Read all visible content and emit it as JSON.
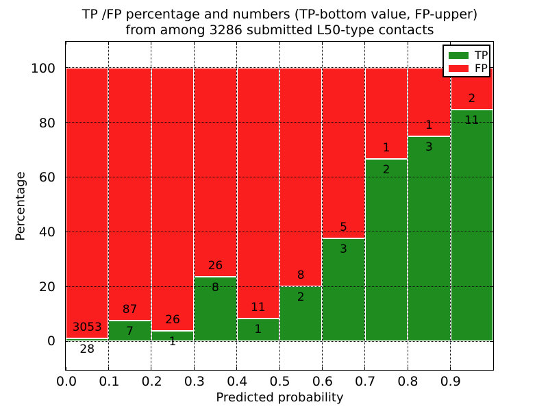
{
  "title": {
    "line1": "TP /FP percentage and numbers (TP-bottom value, FP-upper)",
    "line2": "from among 3286 submitted L50-type contacts"
  },
  "axes": {
    "xlabel": "Predicted probability",
    "ylabel": "Percentage",
    "x_tick_labels": [
      "0.0",
      "0.1",
      "0.2",
      "0.3",
      "0.4",
      "0.5",
      "0.6",
      "0.7",
      "0.8",
      "0.9"
    ],
    "y_tick_labels": [
      "0",
      "20",
      "40",
      "60",
      "80",
      "100"
    ],
    "y_tick_values": [
      0,
      20,
      40,
      60,
      80,
      100
    ],
    "xlim": [
      0.0,
      1.0
    ],
    "ylim_display": [
      -10.5,
      109.5
    ]
  },
  "legend": {
    "items": [
      {
        "label": "TP",
        "color": "#1e8c1e"
      },
      {
        "label": "FP",
        "color": "#fa1e1e"
      }
    ]
  },
  "colors": {
    "tp": "#1e8c1e",
    "fp": "#fa1e1e",
    "bar_edge": "#ffffff",
    "grid": "#000000",
    "background": "#ffffff"
  },
  "chart_data": {
    "type": "bar",
    "stacked": true,
    "normalized": "each bar totals 100%",
    "title": "TP /FP percentage and numbers (TP-bottom value, FP-upper) from among 3286 submitted L50-type contacts",
    "xlabel": "Predicted probability",
    "ylabel": "Percentage",
    "total_contacts": 3286,
    "categories": [
      "0.0-0.1",
      "0.1-0.2",
      "0.2-0.3",
      "0.3-0.4",
      "0.4-0.5",
      "0.5-0.6",
      "0.6-0.7",
      "0.7-0.8",
      "0.8-0.9",
      "0.9-1.0"
    ],
    "series": [
      {
        "name": "TP",
        "position": "bottom",
        "color": "#1e8c1e",
        "counts": [
          28,
          7,
          1,
          8,
          1,
          2,
          3,
          2,
          3,
          11
        ]
      },
      {
        "name": "FP",
        "position": "top",
        "color": "#fa1e1e",
        "counts": [
          3053,
          87,
          26,
          26,
          11,
          8,
          5,
          1,
          1,
          2
        ]
      }
    ],
    "tp_percent_of_bin": [
      0.91,
      7.45,
      3.7,
      23.53,
      8.33,
      20.0,
      37.5,
      66.67,
      75.0,
      84.62
    ],
    "xlim": [
      0.0,
      1.0
    ],
    "ylim": [
      -10.5,
      109.5
    ],
    "grid": "dotted black at x steps of 0.1 and y steps of 20",
    "legend_position": "upper right"
  }
}
